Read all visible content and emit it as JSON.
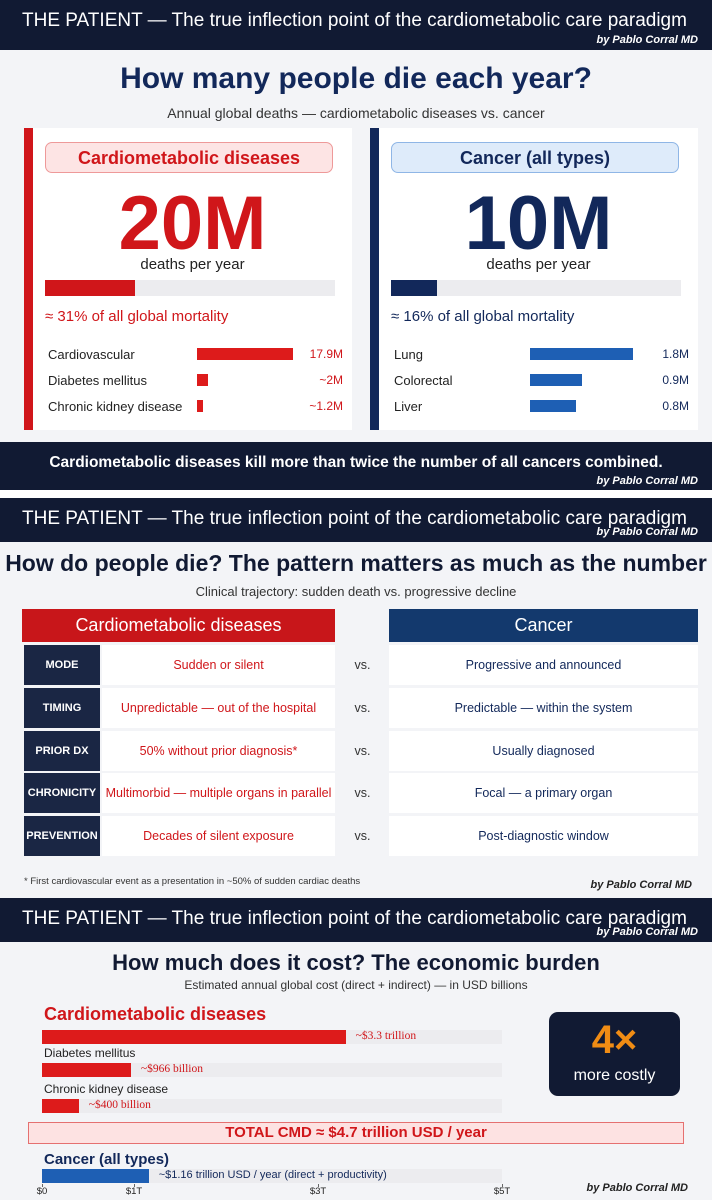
{
  "deaths": {
    "header": {
      "title": "THE PATIENT — The true inflection point of the cardiometabolic care paradigm",
      "byline": "by Pablo Corral MD"
    },
    "title": "How many people die each year?",
    "subtitle": "Annual global deaths — cardiometabolic diseases vs. cancer",
    "panels": [
      {
        "label": "Cardiometabolic diseases",
        "big_number": "20M",
        "unit_text": "deaths per year",
        "mortality_pct": 31,
        "mortality_text": "≈ 31% of all global mortality",
        "rows": [
          {
            "name": "Cardiovascular",
            "value": 17.9,
            "label": "17.9M"
          },
          {
            "name": "Diabetes mellitus",
            "value": 2,
            "label": "~2M"
          },
          {
            "name": "Chronic kidney disease",
            "value": 1.2,
            "label": "~1.2M"
          }
        ]
      },
      {
        "label": "Cancer (all types)",
        "big_number": "10M",
        "unit_text": "deaths per year",
        "mortality_pct": 16,
        "mortality_text": "≈ 16% of all global mortality",
        "rows": [
          {
            "name": "Lung",
            "value": 1.8,
            "label": "1.8M"
          },
          {
            "name": "Colorectal",
            "value": 0.9,
            "label": "0.9M"
          },
          {
            "name": "Liver",
            "value": 0.8,
            "label": "0.8M"
          }
        ]
      }
    ],
    "banner": {
      "text": "Cardiometabolic diseases kill more than twice the number of all cancers combined.",
      "byline": "by Pablo Corral MD"
    }
  },
  "pattern": {
    "header": {
      "title": "THE PATIENT — The true inflection point of the cardiometabolic care paradigm",
      "byline": "by Pablo Corral MD"
    },
    "title": "How do people die? The pattern matters as much as the number",
    "subtitle": "Clinical trajectory: sudden death vs. progressive decline",
    "columns": [
      "Cardiometabolic diseases",
      "Cancer"
    ],
    "separator": "vs.",
    "rows": [
      {
        "label": "MODE",
        "cmd": "Sudden or silent",
        "cancer": "Progressive and announced"
      },
      {
        "label": "TIMING",
        "cmd": "Unpredictable — out of the hospital",
        "cancer": "Predictable — within the system"
      },
      {
        "label": "PRIOR DX",
        "cmd": "50% without prior diagnosis*",
        "cancer": "Usually diagnosed"
      },
      {
        "label": "CHRONICITY",
        "cmd": "Multimorbid — multiple organs in parallel",
        "cancer": "Focal — a primary organ"
      },
      {
        "label": "PREVENTION",
        "cmd": "Decades of silent exposure",
        "cancer": "Post-diagnostic window"
      }
    ],
    "footnote": "* First cardiovascular event as a presentation in ~50% of sudden cardiac deaths",
    "byline": "by Pablo Corral MD"
  },
  "cost": {
    "header": {
      "title": "THE PATIENT — The true inflection point of the cardiometabolic care paradigm",
      "byline": "by Pablo Corral MD"
    },
    "title": "How much does it cost? The economic burden",
    "subtitle": "Estimated annual global cost (direct + indirect) — in USD billions",
    "cmd_heading": "Cardiometabolic diseases",
    "cmd_bars": [
      {
        "name": null,
        "value": 3300,
        "label": "~$3.3 trillion"
      },
      {
        "name": "Diabetes mellitus",
        "value": 966,
        "label": "~$966 billion"
      },
      {
        "name": "Chronic kidney disease",
        "value": 400,
        "label": "~$400 billion"
      }
    ],
    "callout": {
      "big": "4×",
      "text": "more costly"
    },
    "total": "TOTAL CMD ≈ $4.7 trillion USD / year",
    "cancer_heading": "Cancer (all types)",
    "cancer_bar": {
      "value": 1160,
      "label": "~$1.16 trillion USD / year (direct + productivity)"
    },
    "xlim": [
      0,
      5000
    ],
    "xticks": [
      {
        "value": 0,
        "label": "$0"
      },
      {
        "value": 1000,
        "label": "$1T"
      },
      {
        "value": 3000,
        "label": "$3T"
      },
      {
        "value": 5000,
        "label": "$5T"
      }
    ],
    "byline": "by Pablo Corral MD"
  }
}
